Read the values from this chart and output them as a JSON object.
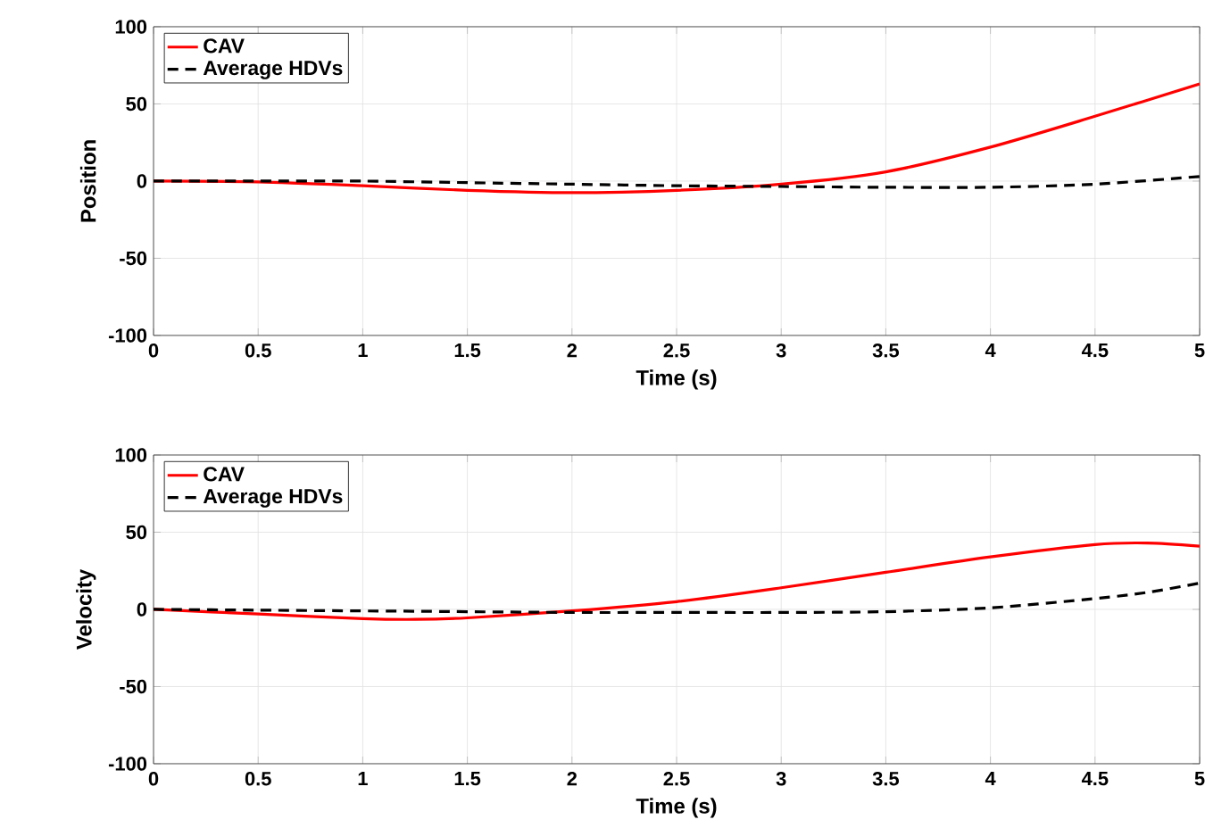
{
  "chart_data": [
    {
      "type": "line",
      "xlabel": "Time (s)",
      "ylabel": "Position",
      "xlim": [
        0,
        5
      ],
      "ylim": [
        -100,
        100
      ],
      "xticks": [
        0,
        0.5,
        1,
        1.5,
        2,
        2.5,
        3,
        3.5,
        4,
        4.5,
        5
      ],
      "yticks": [
        -100,
        -50,
        0,
        50,
        100
      ],
      "grid": true,
      "legend": "top left",
      "x": [
        0,
        0.5,
        1,
        1.5,
        2,
        2.5,
        3,
        3.5,
        4,
        4.5,
        5
      ],
      "series": [
        {
          "name": "CAV",
          "color": "#ff0000",
          "line_style": "solid",
          "values": [
            0,
            -0.5,
            -3,
            -6,
            -7.5,
            -6,
            -2,
            6,
            22,
            42,
            63
          ]
        },
        {
          "name": "Average HDVs",
          "color": "#000000",
          "line_style": "dashed",
          "values": [
            0,
            0,
            0,
            -1,
            -2,
            -3,
            -3.5,
            -4,
            -4,
            -2,
            3
          ]
        }
      ]
    },
    {
      "type": "line",
      "xlabel": "Time (s)",
      "ylabel": "Velocity",
      "xlim": [
        0,
        5
      ],
      "ylim": [
        -100,
        100
      ],
      "xticks": [
        0,
        0.5,
        1,
        1.5,
        2,
        2.5,
        3,
        3.5,
        4,
        4.5,
        5
      ],
      "yticks": [
        -100,
        -50,
        0,
        50,
        100
      ],
      "grid": true,
      "legend": "top left",
      "x": [
        0,
        0.5,
        1,
        1.25,
        1.5,
        2,
        2.5,
        3,
        3.5,
        4,
        4.5,
        4.75,
        5
      ],
      "series": [
        {
          "name": "CAV",
          "color": "#ff0000",
          "line_style": "solid",
          "values": [
            0,
            -3,
            -6,
            -6.5,
            -5.5,
            -1,
            5,
            14,
            24,
            34,
            42,
            43,
            41
          ]
        },
        {
          "name": "Average HDVs",
          "color": "#000000",
          "line_style": "dashed",
          "values": [
            0,
            -0.5,
            -1,
            -1.2,
            -1.5,
            -2,
            -2,
            -2,
            -1.5,
            1,
            7,
            11,
            17
          ]
        }
      ]
    }
  ]
}
